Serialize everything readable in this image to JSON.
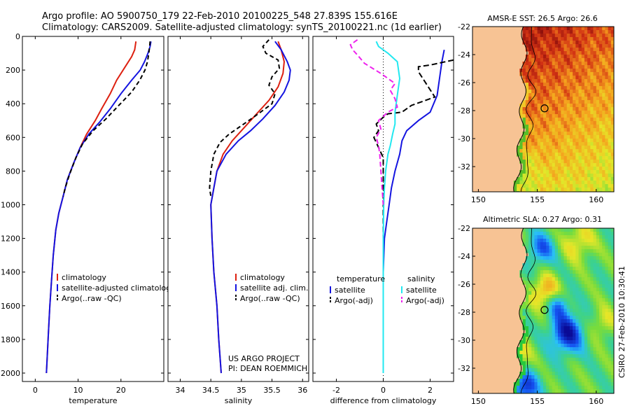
{
  "header": {
    "line1": "Argo profile: AO 5900750_179 22-Feb-2010 20100225_548 27.839S 155.616E",
    "line2": "Climatology: CARS2009. Satellite-adjusted climatology: synTS_20100221.nc (1d earlier)"
  },
  "colors": {
    "red": "#dd2010",
    "blue": "#1414e0",
    "black": "#000000",
    "cyan": "#22e8f0",
    "magenta": "#ee22ee"
  },
  "chart_data": [
    {
      "id": "temperature",
      "type": "line",
      "xlabel": "temperature",
      "xlim": [
        -3,
        30
      ],
      "ylim": [
        0,
        2050
      ],
      "y_reversed": true,
      "xticks": [
        0,
        10,
        20
      ],
      "yticks": [
        0,
        200,
        400,
        600,
        800,
        1000,
        1200,
        1400,
        1600,
        1800,
        2000
      ],
      "legend": [
        "climatology",
        "satellite-adjusted climatology",
        "Argo(..raw -QC)"
      ],
      "series": [
        {
          "name": "climatology",
          "color": "red",
          "dash": "",
          "points": [
            [
              23.5,
              30
            ],
            [
              23.2,
              80
            ],
            [
              22.5,
              120
            ],
            [
              21,
              180
            ],
            [
              19,
              260
            ],
            [
              17.5,
              340
            ],
            [
              15.5,
              430
            ],
            [
              14,
              500
            ],
            [
              12,
              580
            ],
            [
              10.5,
              660
            ],
            [
              9,
              750
            ],
            [
              7.5,
              850
            ],
            [
              6.5,
              950
            ],
            [
              5.5,
              1050
            ],
            [
              4.8,
              1150
            ],
            [
              4.2,
              1300
            ],
            [
              3.8,
              1450
            ],
            [
              3.4,
              1600
            ],
            [
              3.1,
              1750
            ],
            [
              2.8,
              1900
            ],
            [
              2.6,
              2000
            ]
          ]
        },
        {
          "name": "satellite-adjusted climatology",
          "color": "blue",
          "dash": "",
          "points": [
            [
              27,
              30
            ],
            [
              26.8,
              60
            ],
            [
              26.3,
              100
            ],
            [
              25.5,
              150
            ],
            [
              24.5,
              200
            ],
            [
              22.5,
              260
            ],
            [
              20,
              340
            ],
            [
              17.5,
              430
            ],
            [
              15,
              510
            ],
            [
              12.5,
              580
            ],
            [
              10.5,
              660
            ],
            [
              9,
              750
            ],
            [
              7.5,
              850
            ],
            [
              6.5,
              950
            ],
            [
              5.5,
              1050
            ],
            [
              4.8,
              1150
            ],
            [
              4.2,
              1300
            ],
            [
              3.8,
              1450
            ],
            [
              3.4,
              1600
            ],
            [
              3.1,
              1750
            ],
            [
              2.8,
              1900
            ],
            [
              2.6,
              2000
            ]
          ]
        },
        {
          "name": "Argo(..raw -QC)",
          "color": "black",
          "dash": "6,4",
          "points": [
            [
              26.8,
              30
            ],
            [
              26.7,
              60
            ],
            [
              26.5,
              100
            ],
            [
              26.2,
              150
            ],
            [
              25.6,
              200
            ],
            [
              24.4,
              260
            ],
            [
              22.5,
              330
            ],
            [
              19.5,
              410
            ],
            [
              16.5,
              490
            ],
            [
              13.5,
              560
            ],
            [
              11,
              640
            ],
            [
              9.5,
              720
            ],
            [
              8,
              820
            ],
            [
              7,
              900
            ],
            [
              6.5,
              950
            ]
          ]
        }
      ]
    },
    {
      "id": "salinity",
      "type": "line",
      "xlabel": "salinity",
      "xlim": [
        33.8,
        36.1
      ],
      "ylim": [
        0,
        2050
      ],
      "y_reversed": true,
      "xticks": [
        34,
        34.5,
        35,
        35.5,
        36
      ],
      "yticks": [
        0,
        200,
        400,
        600,
        800,
        1000,
        1200,
        1400,
        1600,
        1800,
        2000
      ],
      "legend": [
        "climatology",
        "satellite adj. clim.",
        "Argo(..raw -QC)"
      ],
      "annotation": [
        "US ARGO PROJECT",
        "PI: DEAN ROEMMICH"
      ],
      "series": [
        {
          "name": "climatology",
          "color": "red",
          "dash": "",
          "points": [
            [
              35.6,
              30
            ],
            [
              35.65,
              80
            ],
            [
              35.7,
              150
            ],
            [
              35.68,
              220
            ],
            [
              35.6,
              300
            ],
            [
              35.45,
              380
            ],
            [
              35.25,
              460
            ],
            [
              35.05,
              540
            ],
            [
              34.85,
              620
            ],
            [
              34.7,
              700
            ],
            [
              34.6,
              800
            ],
            [
              34.55,
              900
            ],
            [
              34.5,
              1000
            ],
            [
              34.52,
              1200
            ],
            [
              34.55,
              1400
            ],
            [
              34.6,
              1600
            ],
            [
              34.63,
              1800
            ],
            [
              34.67,
              2000
            ]
          ]
        },
        {
          "name": "satellite adj. clim.",
          "color": "blue",
          "dash": "",
          "points": [
            [
              35.55,
              30
            ],
            [
              35.65,
              80
            ],
            [
              35.75,
              150
            ],
            [
              35.8,
              200
            ],
            [
              35.78,
              260
            ],
            [
              35.7,
              330
            ],
            [
              35.55,
              410
            ],
            [
              35.35,
              490
            ],
            [
              35.15,
              560
            ],
            [
              34.95,
              620
            ],
            [
              34.75,
              700
            ],
            [
              34.6,
              800
            ],
            [
              34.55,
              900
            ],
            [
              34.5,
              1000
            ],
            [
              34.52,
              1200
            ],
            [
              34.55,
              1400
            ],
            [
              34.6,
              1600
            ],
            [
              34.63,
              1800
            ],
            [
              34.67,
              2000
            ]
          ]
        },
        {
          "name": "Argo(..raw -QC)",
          "color": "black",
          "dash": "6,4",
          "points": [
            [
              35.45,
              20
            ],
            [
              35.35,
              60
            ],
            [
              35.4,
              100
            ],
            [
              35.6,
              140
            ],
            [
              35.62,
              190
            ],
            [
              35.5,
              240
            ],
            [
              35.45,
              290
            ],
            [
              35.55,
              340
            ],
            [
              35.5,
              400
            ],
            [
              35.2,
              480
            ],
            [
              35,
              530
            ],
            [
              34.8,
              580
            ],
            [
              34.65,
              630
            ],
            [
              34.55,
              700
            ],
            [
              34.5,
              800
            ],
            [
              34.48,
              900
            ],
            [
              34.5,
              950
            ]
          ]
        }
      ]
    },
    {
      "id": "difference",
      "type": "line",
      "xlabel": "difference from climatology",
      "xlim": [
        -3,
        3
      ],
      "ylim": [
        0,
        2050
      ],
      "y_reversed": true,
      "xticks": [
        -2,
        0,
        2
      ],
      "yticks": [
        0,
        200,
        400,
        600,
        800,
        1000,
        1200,
        1400,
        1600,
        1800,
        2000
      ],
      "legend_left_title": "temperature",
      "legend_right_title": "salinity",
      "legend": [
        "satellite",
        "Argo(-adj)",
        "satellite",
        "Argo(-adj)"
      ],
      "series": [
        {
          "name": "temperature satellite",
          "color": "blue",
          "dash": "",
          "points": [
            [
              2.6,
              80
            ],
            [
              2.5,
              150
            ],
            [
              2.4,
              250
            ],
            [
              2.3,
              350
            ],
            [
              2.0,
              450
            ],
            [
              1.5,
              500
            ],
            [
              1.0,
              560
            ],
            [
              0.8,
              620
            ],
            [
              0.7,
              700
            ],
            [
              0.5,
              800
            ],
            [
              0.35,
              900
            ],
            [
              0.25,
              1000
            ],
            [
              0.15,
              1100
            ],
            [
              0.05,
              1200
            ],
            [
              0,
              1400
            ],
            [
              0,
              2000
            ]
          ]
        },
        {
          "name": "temperature Argo(-adj)",
          "color": "black",
          "dash": "8,4",
          "points": [
            [
              3,
              140
            ],
            [
              2.0,
              170
            ],
            [
              1.5,
              180
            ],
            [
              1.5,
              210
            ],
            [
              2.2,
              360
            ],
            [
              1.2,
              410
            ],
            [
              0.8,
              450
            ],
            [
              0.2,
              460
            ],
            [
              0,
              480
            ],
            [
              -0.3,
              520
            ],
            [
              -0.2,
              560
            ],
            [
              -0.4,
              600
            ],
            [
              -0.2,
              660
            ],
            [
              0,
              720
            ],
            [
              0,
              1300
            ]
          ]
        },
        {
          "name": "salinity satellite",
          "color": "cyan",
          "dash": "",
          "points": [
            [
              -0.3,
              30
            ],
            [
              -0.2,
              60
            ],
            [
              0.2,
              100
            ],
            [
              0.6,
              150
            ],
            [
              0.7,
              250
            ],
            [
              0.6,
              350
            ],
            [
              0.5,
              450
            ],
            [
              0.5,
              520
            ],
            [
              0.4,
              580
            ],
            [
              0.3,
              650
            ],
            [
              0.2,
              700
            ],
            [
              0.1,
              800
            ],
            [
              0.05,
              900
            ],
            [
              0.02,
              1000
            ],
            [
              0,
              1200
            ],
            [
              0,
              2000
            ]
          ]
        },
        {
          "name": "salinity Argo(-adj)",
          "color": "magenta",
          "dash": "7,4",
          "points": [
            [
              -1.1,
              20
            ],
            [
              -1.4,
              50
            ],
            [
              -1.3,
              80
            ],
            [
              -1.1,
              110
            ],
            [
              -0.8,
              160
            ],
            [
              -0.1,
              220
            ],
            [
              0.5,
              280
            ],
            [
              0.3,
              320
            ],
            [
              0.5,
              370
            ],
            [
              0.6,
              420
            ],
            [
              0.2,
              450
            ],
            [
              -0.2,
              500
            ],
            [
              -0.1,
              550
            ],
            [
              -0.3,
              600
            ],
            [
              -0.2,
              650
            ],
            [
              -0.15,
              700
            ],
            [
              0,
              1000
            ]
          ]
        }
      ]
    },
    {
      "id": "sst_map",
      "type": "heatmap",
      "title": "AMSR-E SST: 26.5 Argo: 26.6",
      "xlim": [
        149.5,
        161.5
      ],
      "ylim": [
        -33.8,
        -22
      ],
      "xticks": [
        150,
        155,
        160
      ],
      "yticks": [
        -22,
        -24,
        -26,
        -28,
        -30,
        -32
      ],
      "profile_location": [
        155.616,
        -27.839
      ]
    },
    {
      "id": "sla_map",
      "type": "heatmap",
      "title": "Altimetric SLA: 0.27 Argo: 0.31",
      "xlim": [
        149.5,
        161.5
      ],
      "ylim": [
        -33.8,
        -22
      ],
      "xticks": [
        150,
        155,
        160
      ],
      "yticks": [
        -22,
        -24,
        -26,
        -28,
        -30,
        -32
      ],
      "profile_location": [
        155.616,
        -27.839
      ]
    }
  ],
  "footer": {
    "stamp": "CSIRO 27-Feb-2010 10:30:41"
  }
}
